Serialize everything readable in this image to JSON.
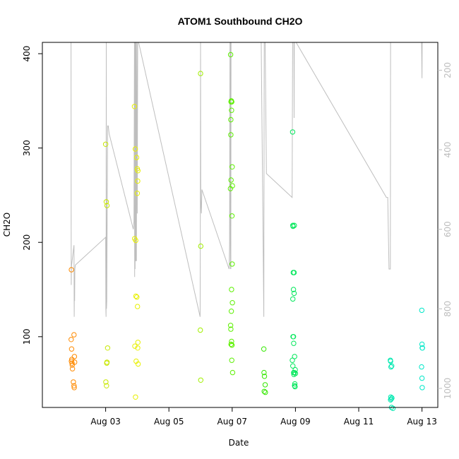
{
  "chart_data": {
    "type": "scatter",
    "title": "ATOM1 Southbound CH2O",
    "xlabel": "Date",
    "ylabel": "CH2O",
    "xlim": [
      "2016-08-01 00:00",
      "2016-08-13 12:00"
    ],
    "ylim": [
      25,
      412
    ],
    "x_ticks": [
      "Aug 03",
      "Aug 05",
      "Aug 07",
      "Aug 09",
      "Aug 11",
      "Aug 13"
    ],
    "y_ticks": [
      100,
      200,
      300,
      400
    ],
    "y2_ticks": [
      200,
      400,
      600,
      800,
      1000
    ],
    "y2lim": [
      1048,
      130
    ],
    "y2_reversed": true,
    "grid": false,
    "legend": "none",
    "colors": {
      "axis": "#000000",
      "altitude_line": "#bebebe",
      "right_axis": "#bdbdbd"
    },
    "point_groups": [
      {
        "color": "#ff8a00",
        "x": [
          "2016-08-01 22:00",
          "2016-08-02 00:00",
          "2016-08-01 21:50",
          "2016-08-01 22:10",
          "2016-08-01 22:20",
          "2016-08-02 00:30",
          "2016-08-01 22:00",
          "2016-08-01 22:30",
          "2016-08-01 22:40",
          "2016-08-01 22:50",
          "2016-08-01 23:30",
          "2016-08-02 00:10",
          "2016-08-02 00:00",
          "2016-08-02 00:20"
        ],
        "y": [
          171,
          102,
          97,
          87,
          76,
          73,
          74,
          72,
          70,
          66,
          52,
          46,
          48,
          79
        ]
      },
      {
        "color": "#c8e800",
        "x": [
          "2016-08-03 00:00",
          "2016-08-03 00:30",
          "2016-08-03 01:00",
          "2016-08-03 01:30",
          "2016-08-03 01:00",
          "2016-08-03 00:10",
          "2016-08-03 00:40",
          "2016-08-03 00:50"
        ],
        "y": [
          304,
          243,
          239,
          88,
          73,
          52,
          48,
          72
        ]
      },
      {
        "color": "#e8f000",
        "x": [
          "2016-08-03 21:50",
          "2016-08-03 22:30",
          "2016-08-03 23:30",
          "2016-08-04 00:00",
          "2016-08-04 00:20",
          "2016-08-04 00:00",
          "2016-08-03 22:00",
          "2016-08-03 22:50",
          "2016-08-03 23:00",
          "2016-08-03 23:40",
          "2016-08-04 00:10",
          "2016-08-04 00:30",
          "2016-08-03 22:10",
          "2016-08-04 00:20",
          "2016-08-03 23:10",
          "2016-08-04 00:40",
          "2016-08-03 22:40",
          "2016-08-04 00:30"
        ],
        "y": [
          344,
          299,
          290,
          278,
          265,
          252,
          204,
          202,
          143,
          142,
          132,
          94,
          90,
          88,
          74,
          71,
          36,
          276
        ]
      },
      {
        "color": "#a2f000",
        "x": [
          "2016-08-06 00:00",
          "2016-08-06 00:10",
          "2016-08-05 23:50",
          "2016-08-06 00:10"
        ],
        "y": [
          379,
          196,
          107,
          54
        ]
      },
      {
        "color": "#5cf000",
        "x": [
          "2016-08-06 22:50",
          "2016-08-06 23:10",
          "2016-08-06 23:20",
          "2016-08-06 23:00",
          "2016-08-06 23:40",
          "2016-08-06 22:40",
          "2016-08-06 23:00",
          "2016-08-06 23:30",
          "2016-08-06 23:10",
          "2016-08-06 23:50",
          "2016-08-07 00:00",
          "2016-08-07 00:10",
          "2016-08-06 22:50",
          "2016-08-06 23:20",
          "2016-08-06 23:40",
          "2016-08-06 23:00",
          "2016-08-06 23:30",
          "2016-08-06 23:50",
          "2016-08-06 23:10",
          "2016-08-06 23:40",
          "2016-08-07 00:20",
          "2016-08-07 00:10",
          "2016-08-07 00:00",
          "2016-08-06 23:30"
        ],
        "y": [
          399,
          349,
          350,
          330,
          349,
          257,
          314,
          340,
          266,
          228,
          177,
          136,
          112,
          127,
          91,
          108,
          95,
          91,
          92,
          75,
          62,
          260,
          280,
          150
        ]
      },
      {
        "color": "#34e800",
        "x": [
          "2016-08-08 00:00",
          "2016-08-08 00:10",
          "2016-08-08 00:30",
          "2016-08-08 01:00",
          "2016-08-08 00:20",
          "2016-08-08 01:10"
        ],
        "y": [
          87,
          62,
          58,
          49,
          42,
          41
        ]
      },
      {
        "color": "#00e85a",
        "x": [
          "2016-08-08 21:50",
          "2016-08-08 22:00",
          "2016-08-08 22:10",
          "2016-08-08 22:20",
          "2016-08-08 22:30",
          "2016-08-08 23:00",
          "2016-08-08 22:00",
          "2016-08-08 22:10",
          "2016-08-08 22:40",
          "2016-08-08 23:20",
          "2016-08-08 21:40",
          "2016-08-08 22:00",
          "2016-08-08 23:50",
          "2016-08-08 23:10",
          "2016-08-08 22:50",
          "2016-08-08 23:30",
          "2016-08-08 23:40",
          "2016-08-09 00:00",
          "2016-08-08 23:10",
          "2016-08-08 23:00",
          "2016-08-08 22:30",
          "2016-08-08 22:40",
          "2016-08-08 23:20"
        ],
        "y": [
          317,
          218,
          217,
          168,
          150,
          146,
          140,
          100,
          93,
          79,
          75,
          69,
          65,
          62,
          60,
          50,
          47,
          61,
          218,
          168,
          100,
          62,
          48
        ]
      },
      {
        "color": "#00e8b0",
        "x": [
          "2016-08-12 00:00",
          "2016-08-12 00:10",
          "2016-08-12 00:30",
          "2016-08-12 01:00",
          "2016-08-12 00:20",
          "2016-08-12 01:10",
          "2016-08-12 00:40",
          "2016-08-12 00:50",
          "2016-08-12 02:00",
          "2016-08-12 00:10"
        ],
        "y": [
          75,
          74,
          68,
          69,
          36,
          35,
          34,
          25,
          24,
          33
        ]
      },
      {
        "color": "#00e8c8",
        "x": [
          "2016-08-12 23:50",
          "2016-08-13 00:00",
          "2016-08-13 00:10",
          "2016-08-12 23:40",
          "2016-08-13 00:00",
          "2016-08-13 00:10",
          "2016-08-13 00:20"
        ],
        "y": [
          128,
          92,
          88,
          68,
          56,
          46,
          88
        ]
      }
    ],
    "altitude_series": {
      "color": "#bebebe",
      "x": [
        "2016-08-01 21:40",
        "2016-08-01 21:45",
        "2016-08-01 21:50",
        "2016-08-01 21:55",
        "2016-08-01 22:00",
        "2016-08-01 22:10",
        "2016-08-02 00:00",
        "2016-08-02 00:05",
        "2016-08-02 00:10",
        "2016-08-02 00:20",
        "2016-08-02 00:30",
        "2016-08-02 00:40",
        "2016-08-02 01:00",
        "2016-08-03 00:00",
        "2016-08-03 00:10",
        "2016-08-03 00:20",
        "2016-08-03 00:30",
        "2016-08-03 00:40",
        "2016-08-03 00:50",
        "2016-08-03 01:30",
        "2016-08-03 02:00",
        "2016-08-03 02:40",
        "2016-08-03 21:00",
        "2016-08-03 21:30",
        "2016-08-03 21:50",
        "2016-08-03 22:00",
        "2016-08-03 22:10",
        "2016-08-03 22:20",
        "2016-08-03 22:30",
        "2016-08-03 22:40",
        "2016-08-03 22:50",
        "2016-08-03 23:00",
        "2016-08-03 23:20",
        "2016-08-03 23:40",
        "2016-08-04 00:00",
        "2016-08-04 00:20",
        "2016-08-04 00:40",
        "2016-08-04 01:00",
        "2016-08-05 23:40",
        "2016-08-05 23:50",
        "2016-08-06 00:00",
        "2016-08-06 00:10",
        "2016-08-06 00:20",
        "2016-08-06 00:40",
        "2016-08-06 01:00",
        "2016-08-06 21:40",
        "2016-08-06 22:00",
        "2016-08-06 22:20",
        "2016-08-06 22:40",
        "2016-08-06 22:50",
        "2016-08-06 23:00",
        "2016-08-06 23:10",
        "2016-08-06 23:20",
        "2016-08-06 23:30",
        "2016-08-06 23:40",
        "2016-08-06 23:50",
        "2016-08-07 00:00",
        "2016-08-07 00:10",
        "2016-08-07 00:20",
        "2016-08-07 00:40",
        "2016-08-07 01:00",
        "2016-08-07 21:40",
        "2016-08-07 22:00",
        "2016-08-08 00:00",
        "2016-08-08 00:10",
        "2016-08-08 00:20",
        "2016-08-08 00:30",
        "2016-08-08 00:40",
        "2016-08-08 01:00",
        "2016-08-08 02:00",
        "2016-08-08 21:30",
        "2016-08-08 21:50",
        "2016-08-08 22:00",
        "2016-08-08 22:10",
        "2016-08-08 22:20",
        "2016-08-08 22:30",
        "2016-08-08 22:40",
        "2016-08-08 22:50",
        "2016-08-08 23:00",
        "2016-08-08 23:10",
        "2016-08-08 23:20",
        "2016-08-08 23:40",
        "2016-08-09 00:00",
        "2016-08-09 00:30",
        "2016-08-11 21:00",
        "2016-08-11 22:00",
        "2016-08-11 23:00",
        "2016-08-12 00:00",
        "2016-08-12 00:10",
        "2016-08-12 00:20",
        "2016-08-12 00:40",
        "2016-08-12 01:00",
        "2016-08-12 01:20",
        "2016-08-12 01:40",
        "2016-08-12 02:00",
        "2016-08-12 02:30",
        "2016-08-12 22:00",
        "2016-08-12 23:00",
        "2016-08-12 23:40",
        "2016-08-13 00:00",
        "2016-08-13 00:10",
        "2016-08-13 00:20"
      ],
      "y": [
        130,
        130,
        600,
        740,
        700,
        690,
        640,
        780,
        820,
        740,
        780,
        700,
        690,
        620,
        800,
        820,
        130,
        800,
        780,
        340,
        340,
        360,
        600,
        580,
        130,
        720,
        130,
        700,
        130,
        130,
        680,
        130,
        680,
        130,
        560,
        130,
        130,
        130,
        820,
        560,
        130,
        520,
        540,
        560,
        500,
        700,
        640,
        130,
        700,
        130,
        700,
        130,
        130,
        130,
        130,
        130,
        130,
        130,
        130,
        130,
        130,
        130,
        130,
        820,
        440,
        130,
        130,
        130,
        130,
        460,
        520,
        130,
        130,
        130,
        130,
        130,
        130,
        130,
        320,
        130,
        130,
        130,
        130,
        130,
        520,
        520,
        700,
        700,
        130,
        130,
        130,
        130,
        130,
        130,
        130,
        130,
        130,
        130,
        130,
        220,
        130,
        130
      ]
    }
  }
}
